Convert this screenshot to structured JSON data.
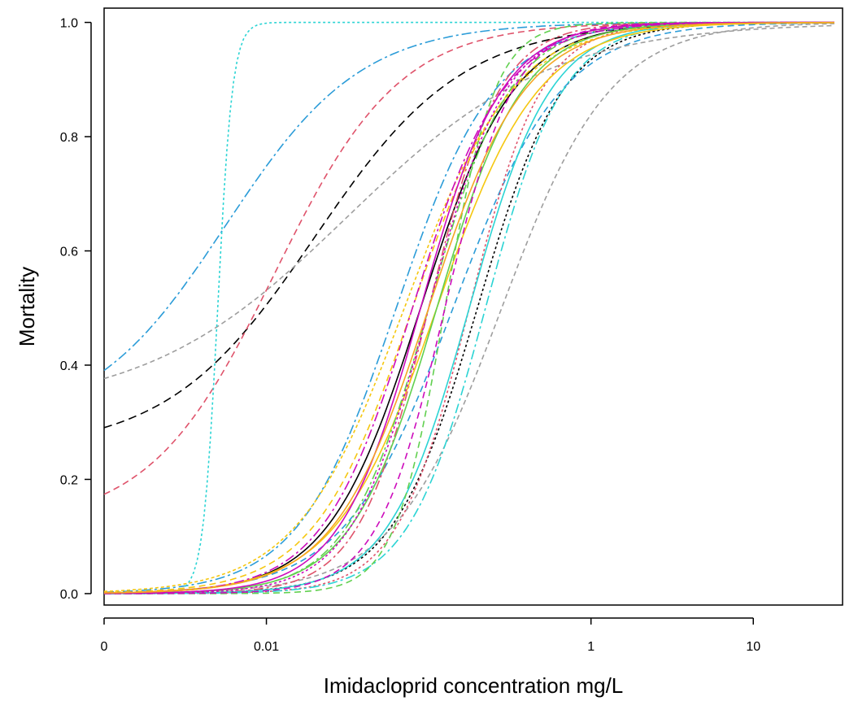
{
  "chart_data": {
    "type": "line",
    "title": "",
    "xlabel": "Imidacloprid concentration mg/L",
    "ylabel": "Mortality",
    "x_scale": "log",
    "xlim_log10": [
      -3.0,
      1.55
    ],
    "ylim": [
      -0.02,
      1.025
    ],
    "x_ticks": [
      {
        "log10": -3,
        "label": "0"
      },
      {
        "log10": -2,
        "label": "0.01"
      },
      {
        "log10": 0,
        "label": "1"
      },
      {
        "log10": 1,
        "label": "10"
      }
    ],
    "y_ticks": [
      {
        "value": 0.0,
        "label": "0.0"
      },
      {
        "value": 0.2,
        "label": "0.2"
      },
      {
        "value": 0.4,
        "label": "0.4"
      },
      {
        "value": 0.6,
        "label": "0.6"
      },
      {
        "value": 0.8,
        "label": "0.8"
      },
      {
        "value": 1.0,
        "label": "1.0"
      }
    ],
    "grid": false,
    "legend": "none",
    "curve_model": "log-logistic: mortality = c + (1 - c) / (1 + exp(-b * (log10(x) - log10(LC50))))",
    "series": [
      {
        "color": "#000000",
        "dash": "10,6",
        "c": 0.25,
        "log10_lc50": -1.7,
        "b": 2.2
      },
      {
        "color": "#000000",
        "dash": "",
        "c": 0.0,
        "log10_lc50": -1.05,
        "b": 3.5
      },
      {
        "color": "#000000",
        "dash": "3,3",
        "c": 0.0,
        "log10_lc50": -0.7,
        "b": 3.8
      },
      {
        "color": "#2b9cd8",
        "dash": "12,4,3,4",
        "c": 0.29,
        "log10_lc50": -2.25,
        "b": 2.4
      },
      {
        "color": "#2b9cd8",
        "dash": "8,5",
        "c": 0.0,
        "log10_lc50": -0.85,
        "b": 3.0
      },
      {
        "color": "#2b9cd8",
        "dash": "12,4,3,4",
        "c": 0.0,
        "log10_lc50": -1.2,
        "b": 3.3
      },
      {
        "color": "#9e9e9e",
        "dash": "6,4",
        "c": 0.32,
        "log10_lc50": -1.5,
        "b": 1.6
      },
      {
        "color": "#9e9e9e",
        "dash": "6,4",
        "c": 0.0,
        "log10_lc50": -0.55,
        "b": 3.0
      },
      {
        "color": "#df536b",
        "dash": "8,5",
        "c": 0.12,
        "log10_lc50": -1.95,
        "b": 2.6
      },
      {
        "color": "#df536b",
        "dash": "12,4,3,4",
        "c": 0.0,
        "log10_lc50": -1.0,
        "b": 4.6
      },
      {
        "color": "#df536b",
        "dash": "3,3",
        "c": 0.0,
        "log10_lc50": -0.75,
        "b": 4.5
      },
      {
        "color": "#2bd4d4",
        "dash": "3,3",
        "c": 0.0,
        "log10_lc50": -2.3,
        "b": 22
      },
      {
        "color": "#2bd4d4",
        "dash": "",
        "c": 0.0,
        "log10_lc50": -0.75,
        "b": 4.0
      },
      {
        "color": "#2bd4d4",
        "dash": "12,4,3,4",
        "c": 0.0,
        "log10_lc50": -0.65,
        "b": 4.2
      },
      {
        "color": "#f5c710",
        "dash": "4,3",
        "c": 0.0,
        "log10_lc50": -1.15,
        "b": 3.0
      },
      {
        "color": "#f5c710",
        "dash": "",
        "c": 0.0,
        "log10_lc50": -0.95,
        "b": 3.2
      },
      {
        "color": "#f5c710",
        "dash": "8,5",
        "c": 0.0,
        "log10_lc50": -1.1,
        "b": 3.3
      },
      {
        "color": "#61d04f",
        "dash": "8,5",
        "c": 0.0,
        "log10_lc50": -0.9,
        "b": 6.5
      },
      {
        "color": "#61d04f",
        "dash": "",
        "c": 0.0,
        "log10_lc50": -0.95,
        "b": 3.8
      },
      {
        "color": "#61d04f",
        "dash": "12,4,3,4",
        "c": 0.0,
        "log10_lc50": -1.0,
        "b": 4.0
      },
      {
        "color": "#cd0bbc",
        "dash": "",
        "c": 0.0,
        "log10_lc50": -1.05,
        "b": 4.0
      },
      {
        "color": "#cd0bbc",
        "dash": "8,5",
        "c": 0.0,
        "log10_lc50": -0.9,
        "b": 4.8
      },
      {
        "color": "#cd0bbc",
        "dash": "12,4,3,4",
        "c": 0.0,
        "log10_lc50": -1.1,
        "b": 3.6
      },
      {
        "color": "#cd0bbc",
        "dash": "3,3",
        "c": 0.0,
        "log10_lc50": -1.0,
        "b": 4.2
      },
      {
        "color": "#f5a623",
        "dash": "",
        "c": 0.0,
        "log10_lc50": -1.0,
        "b": 3.4
      }
    ]
  }
}
